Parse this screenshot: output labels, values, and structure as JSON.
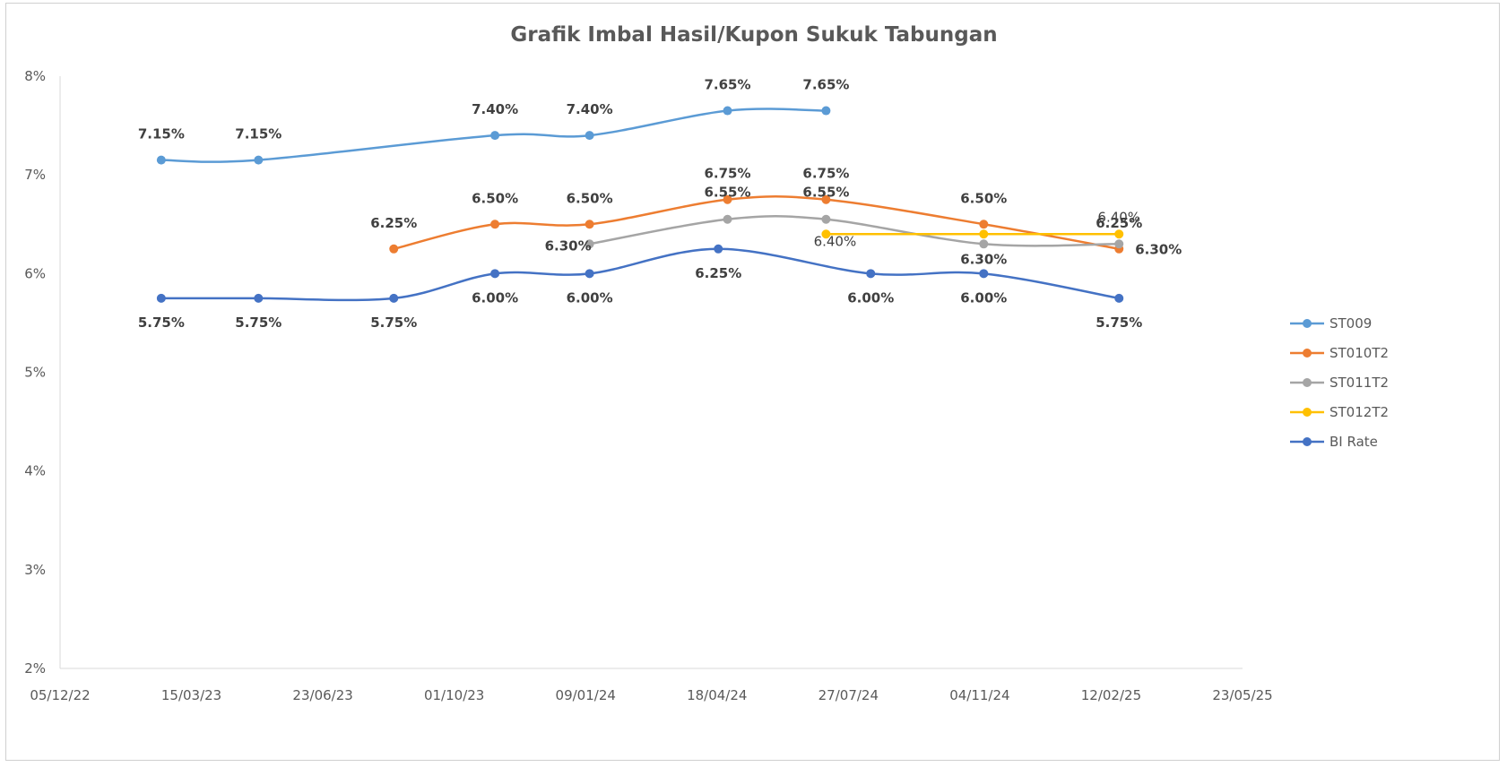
{
  "chart_data": {
    "type": "line",
    "title": "Grafik Imbal Hasil/Kupon Sukuk Tabungan",
    "xlabel": "",
    "ylabel": "",
    "x_ticks": [
      "05/12/22",
      "15/03/23",
      "23/06/23",
      "01/10/23",
      "09/01/24",
      "18/04/24",
      "27/07/24",
      "04/11/24",
      "12/02/25",
      "23/05/25"
    ],
    "xlim": [
      "2022-12-05",
      "2025-05-23"
    ],
    "y_ticks": [
      "2%",
      "3%",
      "4%",
      "5%",
      "6%",
      "7%",
      "8%"
    ],
    "ylim": [
      2,
      8
    ],
    "legend_position": "right",
    "series": [
      {
        "name": "ST009",
        "color": "#5B9BD5",
        "points": [
          {
            "date": "2023-02-20",
            "value": 7.15,
            "label": "7.15%"
          },
          {
            "date": "2023-05-05",
            "value": 7.15,
            "label": "7.15%"
          },
          {
            "date": "2023-11-01",
            "value": 7.4,
            "label": "7.40%"
          },
          {
            "date": "2024-01-12",
            "value": 7.4,
            "label": "7.40%"
          },
          {
            "date": "2024-04-26",
            "value": 7.65,
            "label": "7.65%"
          },
          {
            "date": "2024-07-10",
            "value": 7.65,
            "label": "7.65%"
          }
        ]
      },
      {
        "name": "ST010T2",
        "color": "#ED7D31",
        "points": [
          {
            "date": "2023-08-16",
            "value": 6.25,
            "label": "6.25%"
          },
          {
            "date": "2023-11-01",
            "value": 6.5,
            "label": "6.50%"
          },
          {
            "date": "2024-01-12",
            "value": 6.5,
            "label": "6.50%"
          },
          {
            "date": "2024-04-26",
            "value": 6.75,
            "label": "6.75%"
          },
          {
            "date": "2024-07-10",
            "value": 6.75,
            "label": "6.75%"
          },
          {
            "date": "2024-11-07",
            "value": 6.5,
            "label": "6.50%"
          },
          {
            "date": "2025-02-18",
            "value": 6.25,
            "label": "6.25%"
          }
        ]
      },
      {
        "name": "ST011T2",
        "color": "#A5A5A5",
        "points": [
          {
            "date": "2024-01-12",
            "value": 6.3,
            "label": "6.30%"
          },
          {
            "date": "2024-04-26",
            "value": 6.55,
            "label": "6.55%"
          },
          {
            "date": "2024-07-10",
            "value": 6.55,
            "label": "6.55%"
          },
          {
            "date": "2024-11-07",
            "value": 6.3,
            "label": "6.30%"
          },
          {
            "date": "2025-02-18",
            "value": 6.3,
            "label": "6.30%"
          }
        ]
      },
      {
        "name": "ST012T2",
        "color": "#FFC000",
        "points": [
          {
            "date": "2024-07-10",
            "value": 6.4,
            "label": "6.40%"
          },
          {
            "date": "2024-11-07",
            "value": 6.4,
            "label": ""
          },
          {
            "date": "2025-02-18",
            "value": 6.4,
            "label": "6.40%"
          }
        ]
      },
      {
        "name": "BI Rate",
        "color": "#4472C4",
        "points": [
          {
            "date": "2023-02-20",
            "value": 5.75,
            "label": "5.75%"
          },
          {
            "date": "2023-05-05",
            "value": 5.75,
            "label": "5.75%"
          },
          {
            "date": "2023-08-16",
            "value": 5.75,
            "label": "5.75%"
          },
          {
            "date": "2023-11-01",
            "value": 6.0,
            "label": "6.00%"
          },
          {
            "date": "2024-01-12",
            "value": 6.0,
            "label": "6.00%"
          },
          {
            "date": "2024-04-19",
            "value": 6.25,
            "label": "6.25%"
          },
          {
            "date": "2024-08-13",
            "value": 6.0,
            "label": "6.00%"
          },
          {
            "date": "2024-11-07",
            "value": 6.0,
            "label": "6.00%"
          },
          {
            "date": "2025-02-18",
            "value": 5.75,
            "label": "5.75%"
          }
        ]
      }
    ]
  }
}
